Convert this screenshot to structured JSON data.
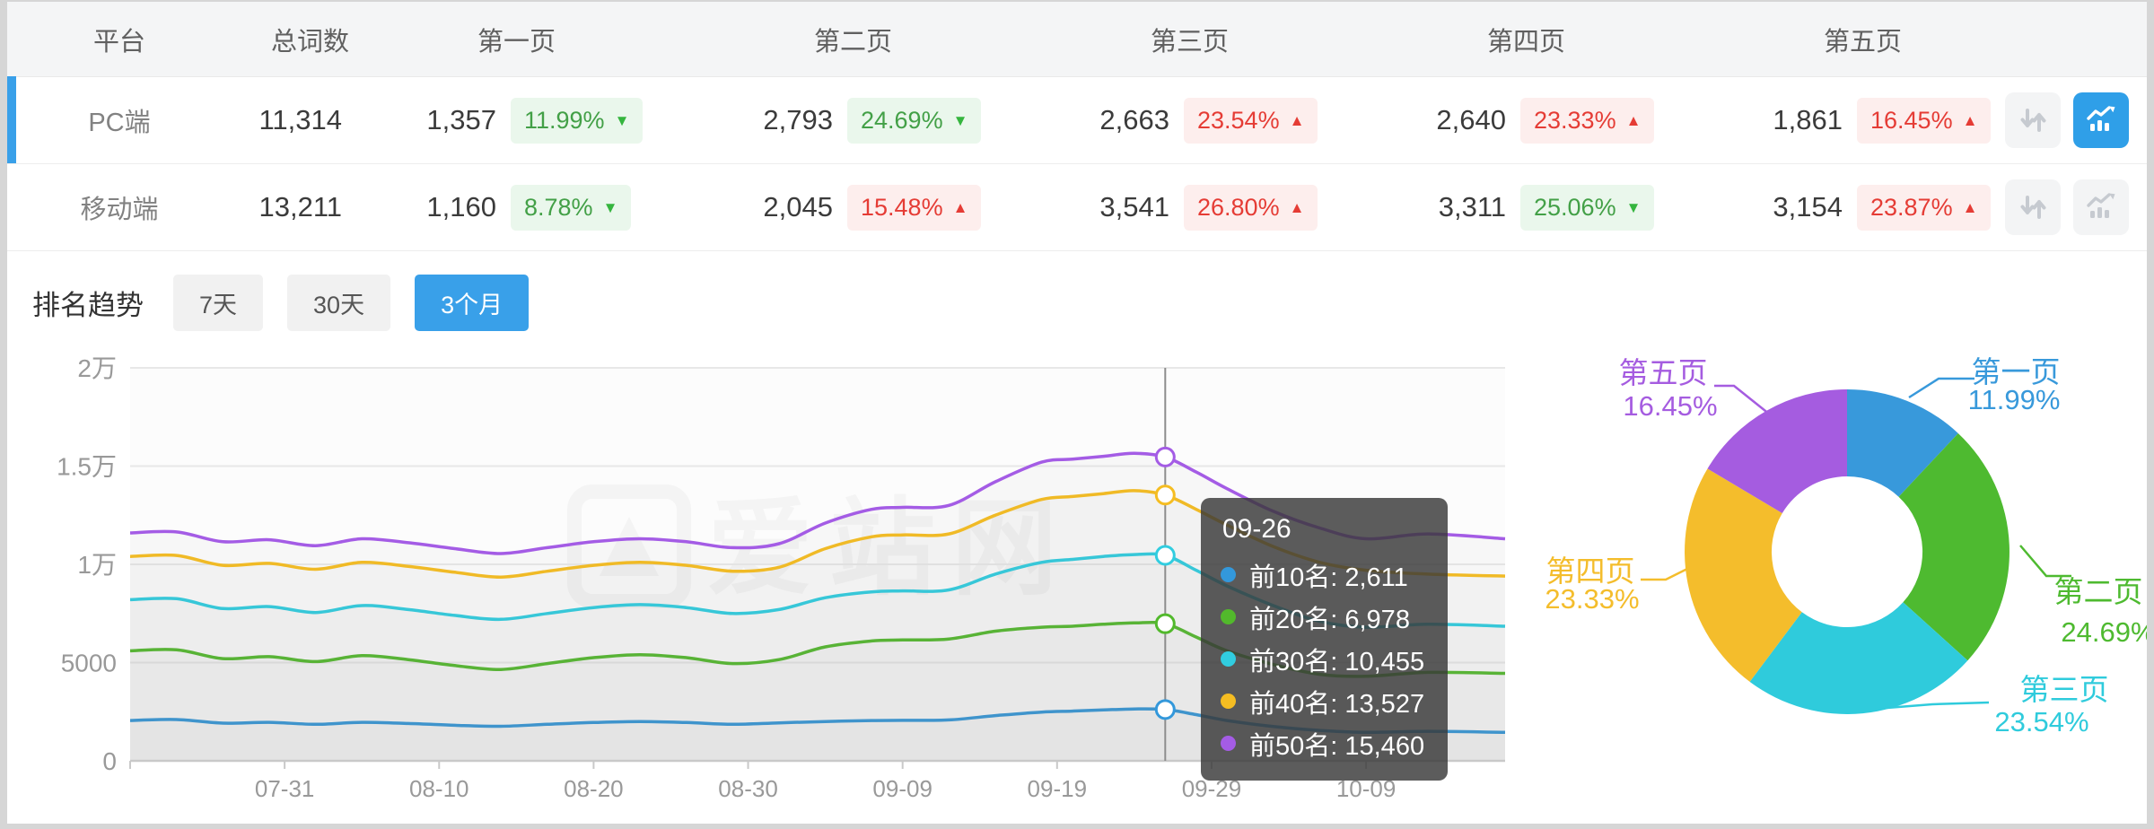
{
  "table": {
    "headers": [
      "平台",
      "总词数",
      "第一页",
      "第二页",
      "第三页",
      "第四页",
      "第五页"
    ],
    "rows": [
      {
        "platform": "PC端",
        "total": "11,314",
        "selected": true,
        "chart_active": true,
        "pages": [
          {
            "count": "1,357",
            "pct": "11.99%",
            "dir": "down",
            "tone": "green"
          },
          {
            "count": "2,793",
            "pct": "24.69%",
            "dir": "down",
            "tone": "green"
          },
          {
            "count": "2,663",
            "pct": "23.54%",
            "dir": "up",
            "tone": "red"
          },
          {
            "count": "2,640",
            "pct": "23.33%",
            "dir": "up",
            "tone": "red"
          },
          {
            "count": "1,861",
            "pct": "16.45%",
            "dir": "up",
            "tone": "red"
          }
        ]
      },
      {
        "platform": "移动端",
        "total": "13,211",
        "selected": false,
        "chart_active": false,
        "pages": [
          {
            "count": "1,160",
            "pct": "8.78%",
            "dir": "down",
            "tone": "green"
          },
          {
            "count": "2,045",
            "pct": "15.48%",
            "dir": "up",
            "tone": "red"
          },
          {
            "count": "3,541",
            "pct": "26.80%",
            "dir": "up",
            "tone": "red"
          },
          {
            "count": "3,311",
            "pct": "25.06%",
            "dir": "down",
            "tone": "green"
          },
          {
            "count": "3,154",
            "pct": "23.87%",
            "dir": "up",
            "tone": "red"
          }
        ]
      }
    ]
  },
  "icons": {
    "sort": "sort-arrows-icon",
    "chart": "trend-chart-icon",
    "up_arrow": "▲",
    "down_arrow": "▼"
  },
  "trend": {
    "label": "排名趋势",
    "tabs": [
      {
        "label": "7天",
        "active": false
      },
      {
        "label": "30天",
        "active": false
      },
      {
        "label": "3个月",
        "active": true
      }
    ]
  },
  "watermark": {
    "text": "爱站网"
  },
  "colors": {
    "accent_blue": "#39a0e9",
    "badge_green": "#43a047",
    "badge_green_bg": "#eaf7ec",
    "badge_red": "#e53c35",
    "badge_red_bg": "#fdeeed",
    "series": [
      "#3398db",
      "#52b92c",
      "#31cde0",
      "#f5bd22",
      "#a45ce5"
    ]
  },
  "tooltip": {
    "date": "09-26",
    "items": [
      {
        "name": "前10名",
        "value": "2,611",
        "color": "#3398db"
      },
      {
        "name": "前20名",
        "value": "6,978",
        "color": "#52b92c"
      },
      {
        "name": "前30名",
        "value": "10,455",
        "color": "#31cde0"
      },
      {
        "name": "前40名",
        "value": "13,527",
        "color": "#f5bd22"
      },
      {
        "name": "前50名",
        "value": "15,460",
        "color": "#a45ce5"
      }
    ]
  },
  "chart_data": [
    {
      "type": "line",
      "title": "排名趋势 3个月",
      "ylim": [
        0,
        20000
      ],
      "ytick_values": [
        0,
        5000,
        10000,
        15000,
        20000
      ],
      "ytick_labels": [
        "0",
        "5000",
        "1万",
        "1.5万",
        "2万"
      ],
      "x_range_days": 89,
      "xtick_days": [
        10,
        20,
        30,
        40,
        50,
        60,
        70,
        80
      ],
      "xtick_labels": [
        "07-31",
        "08-10",
        "08-20",
        "08-30",
        "09-09",
        "09-19",
        "09-29",
        "10-09"
      ],
      "x_days": [
        0,
        3,
        6,
        9,
        12,
        15,
        18,
        21,
        24,
        27,
        30,
        33,
        36,
        39,
        42,
        45,
        48,
        50,
        53,
        56,
        59,
        61,
        63,
        65,
        67,
        69,
        71,
        74,
        77,
        80,
        84,
        89
      ],
      "series": [
        {
          "name": "前10名",
          "color": "#3398db",
          "values": [
            2050,
            2100,
            1920,
            1960,
            1860,
            1960,
            1900,
            1810,
            1760,
            1860,
            1950,
            2000,
            1950,
            1860,
            1930,
            2000,
            2050,
            2060,
            2080,
            2300,
            2480,
            2530,
            2590,
            2640,
            2611,
            2350,
            2050,
            1750,
            1550,
            1450,
            1500,
            1450
          ]
        },
        {
          "name": "前20名",
          "color": "#52b92c",
          "values": [
            5600,
            5650,
            5200,
            5300,
            5050,
            5350,
            5150,
            4850,
            4650,
            4950,
            5250,
            5400,
            5250,
            4950,
            5150,
            5800,
            6100,
            6150,
            6200,
            6600,
            6800,
            6850,
            6950,
            7020,
            6978,
            6300,
            5600,
            4900,
            4400,
            4300,
            4500,
            4450
          ]
        },
        {
          "name": "前30名",
          "color": "#31cde0",
          "values": [
            8200,
            8250,
            7750,
            7850,
            7550,
            7900,
            7700,
            7400,
            7200,
            7500,
            7800,
            7950,
            7800,
            7500,
            7700,
            8300,
            8600,
            8650,
            8700,
            9500,
            10100,
            10250,
            10400,
            10500,
            10455,
            9700,
            8900,
            7900,
            7100,
            6800,
            6950,
            6850
          ]
        },
        {
          "name": "前40名",
          "color": "#f5bd22",
          "values": [
            10400,
            10450,
            9950,
            10050,
            9750,
            10100,
            9900,
            9600,
            9350,
            9650,
            9950,
            10100,
            9950,
            9650,
            9850,
            10800,
            11400,
            11500,
            11550,
            12500,
            13300,
            13450,
            13600,
            13750,
            13527,
            12800,
            12000,
            10900,
            10100,
            9700,
            9500,
            9400
          ]
        },
        {
          "name": "前50名",
          "color": "#a45ce5",
          "values": [
            11600,
            11650,
            11150,
            11250,
            10950,
            11300,
            11100,
            10800,
            10550,
            10850,
            11150,
            11300,
            11150,
            10850,
            11050,
            12100,
            12800,
            12900,
            13000,
            14200,
            15200,
            15350,
            15500,
            15650,
            15460,
            14700,
            13850,
            12700,
            11850,
            11300,
            11550,
            11300
          ]
        }
      ],
      "crosshair": {
        "day": 67,
        "date": "09-26",
        "marker_values": [
          2611,
          6978,
          10455,
          13527,
          15460
        ]
      },
      "grid": true,
      "legend": "none"
    },
    {
      "type": "donut",
      "slices": [
        {
          "label": "第一页",
          "pct": 11.99,
          "pct_label": "11.99%",
          "color": "#3899db"
        },
        {
          "label": "第二页",
          "pct": 24.69,
          "pct_label": "24.69%",
          "color": "#4eba30"
        },
        {
          "label": "第三页",
          "pct": 23.54,
          "pct_label": "23.54%",
          "color": "#2fcbdc"
        },
        {
          "label": "第四页",
          "pct": 23.33,
          "pct_label": "23.33%",
          "color": "#f4bd2c"
        },
        {
          "label": "第五页",
          "pct": 16.45,
          "pct_label": "16.45%",
          "color": "#a55ce0"
        }
      ],
      "label_position": "outside-with-leader-lines"
    }
  ]
}
